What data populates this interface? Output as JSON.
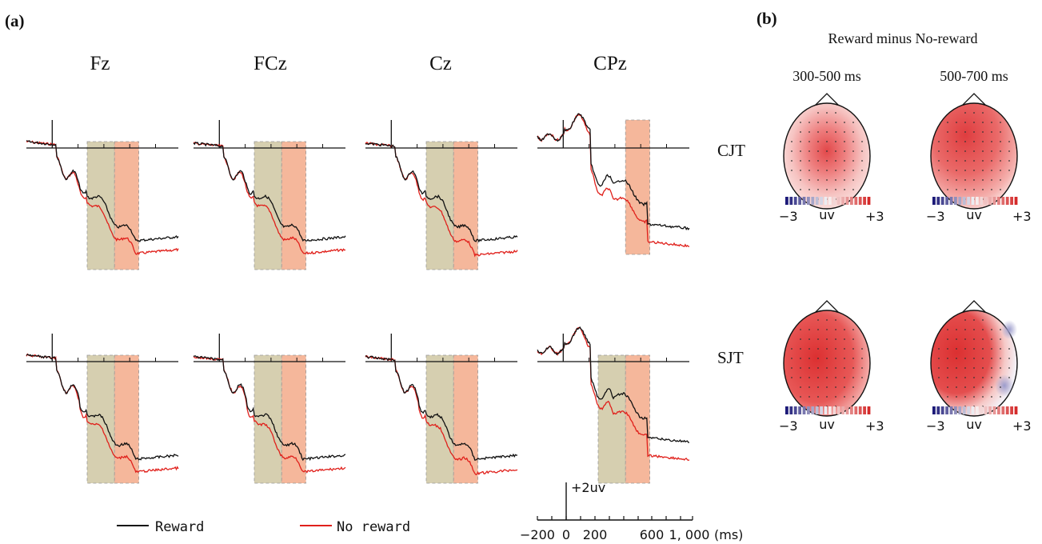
{
  "panel_labels": {
    "a": "(a)",
    "b": "(b)"
  },
  "electrodes": [
    "Fz",
    "FCz",
    "Cz",
    "CPz"
  ],
  "conditions": [
    "CJT",
    "SJT"
  ],
  "legend": {
    "reward": "Reward",
    "no_reward": "No reward"
  },
  "scalebar": {
    "voltage_label": "+2uv",
    "tick_labels": [
      "−200",
      "0",
      "200",
      "600",
      "1, 000"
    ],
    "unit": "(ms)"
  },
  "topo": {
    "title": "Reward minus No-reward",
    "windows": [
      "300-500 ms",
      "500-700 ms"
    ],
    "colorbar": {
      "min": "−3",
      "unit": "uv",
      "max": "+3"
    }
  },
  "colors": {
    "reward": "#111111",
    "no_reward": "#e0201b",
    "window1_fill": "#d6cfb0",
    "window2_fill": "#f5b79b",
    "negative": "#1c1a78",
    "positive": "#d42a2a"
  },
  "chart_data": [
    {
      "type": "line",
      "x_unit": "ms",
      "x_ticks": [
        -200,
        0,
        200,
        600,
        1000
      ],
      "y_scale_label": "+2uv",
      "series": [
        {
          "name": "Reward",
          "color": "#111111"
        },
        {
          "name": "No reward",
          "color": "#e0201b"
        }
      ],
      "shaded_windows_ms": [
        [
          300,
          500
        ],
        [
          500,
          700
        ]
      ],
      "panels": [
        {
          "condition": "CJT",
          "electrode": "Fz"
        },
        {
          "condition": "CJT",
          "electrode": "FCz"
        },
        {
          "condition": "CJT",
          "electrode": "Cz"
        },
        {
          "condition": "CJT",
          "electrode": "CPz"
        },
        {
          "condition": "SJT",
          "electrode": "Fz"
        },
        {
          "condition": "SJT",
          "electrode": "FCz"
        },
        {
          "condition": "SJT",
          "electrode": "Cz"
        },
        {
          "condition": "SJT",
          "electrode": "CPz"
        }
      ]
    },
    {
      "type": "heatmap",
      "title": "Reward minus No-reward",
      "rows": [
        "CJT",
        "SJT"
      ],
      "columns": [
        "300-500 ms",
        "500-700 ms"
      ],
      "colorbar_range_uv": [
        -3,
        3
      ]
    }
  ]
}
